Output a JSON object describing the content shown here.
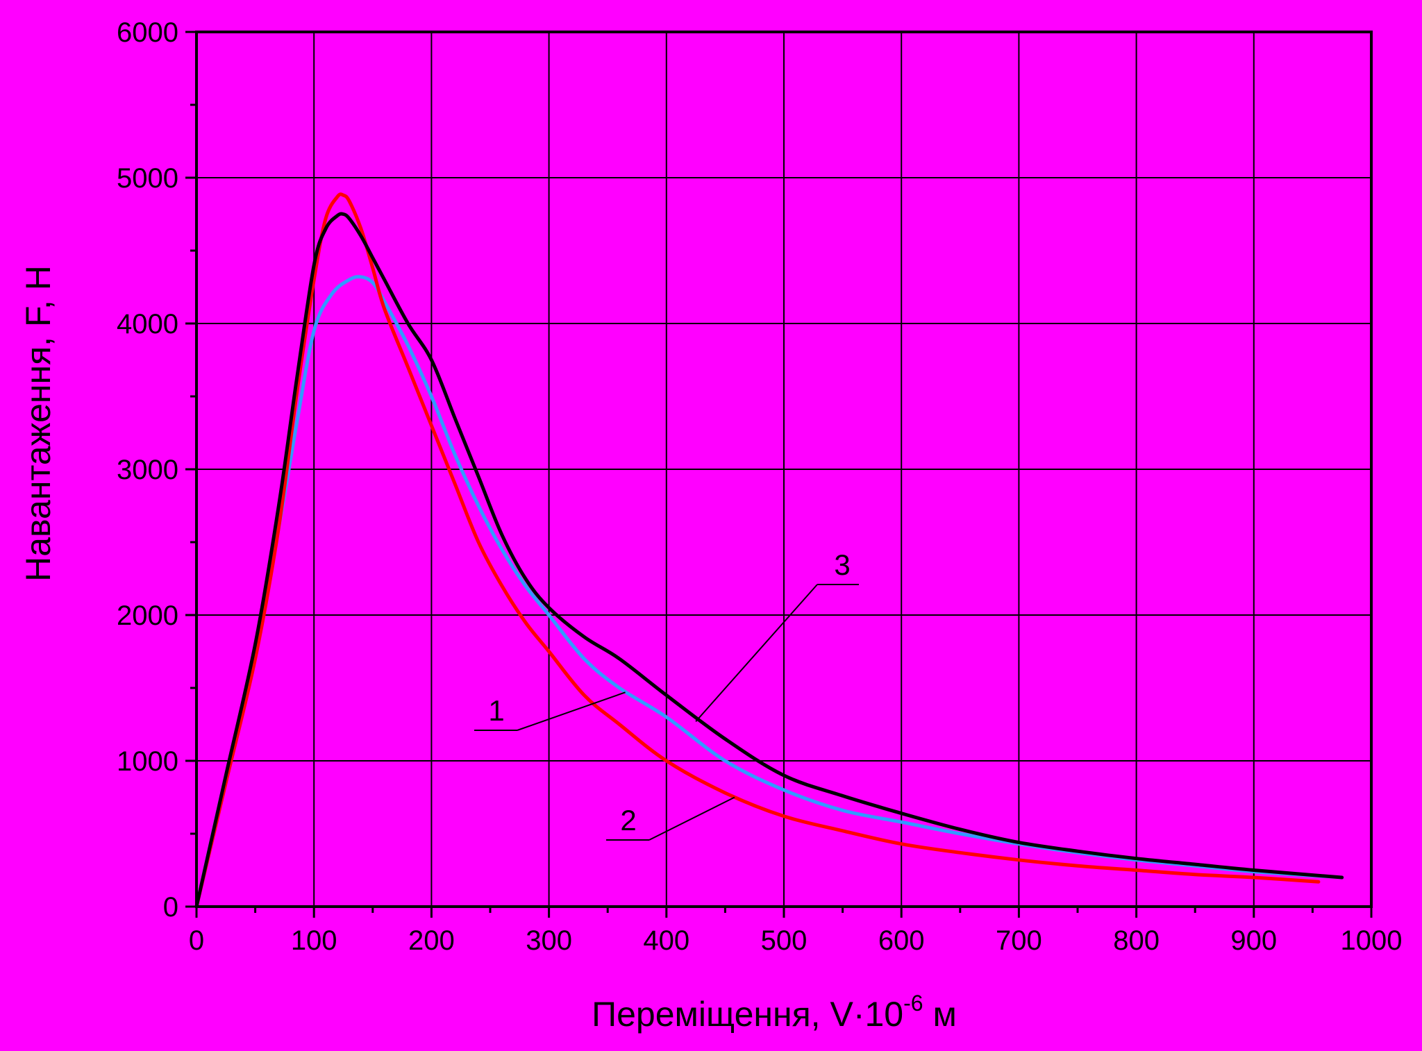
{
  "chart_data": {
    "type": "line",
    "xlabel": "Переміщення, V·10",
    "xlabel_exp": "-6",
    "xlabel_unit": " м",
    "ylabel": "Навантаження, F, Н",
    "xlim": [
      0,
      1000
    ],
    "ylim": [
      0,
      6000
    ],
    "xticks": [
      0,
      100,
      200,
      300,
      400,
      500,
      600,
      700,
      800,
      900,
      1000
    ],
    "yticks": [
      0,
      1000,
      2000,
      3000,
      4000,
      5000,
      6000
    ],
    "grid": true,
    "background": "#FF00FF",
    "series": [
      {
        "name": "1",
        "color": "#3399FF",
        "x": [
          0,
          25,
          50,
          70,
          85,
          100,
          115,
          130,
          140,
          150,
          160,
          180,
          200,
          220,
          240,
          260,
          280,
          300,
          330,
          360,
          400,
          450,
          500,
          550,
          600,
          650,
          700,
          750,
          800,
          850,
          900,
          975
        ],
        "y": [
          0,
          900,
          1750,
          2600,
          3300,
          3950,
          4200,
          4300,
          4320,
          4280,
          4150,
          3850,
          3500,
          3100,
          2750,
          2450,
          2200,
          2000,
          1700,
          1500,
          1300,
          1000,
          800,
          660,
          580,
          500,
          430,
          370,
          320,
          280,
          240,
          200
        ]
      },
      {
        "name": "2",
        "color": "#FF0000",
        "x": [
          0,
          25,
          50,
          70,
          85,
          100,
          110,
          120,
          125,
          130,
          140,
          150,
          160,
          180,
          200,
          220,
          240,
          260,
          280,
          300,
          330,
          360,
          400,
          450,
          500,
          550,
          600,
          650,
          700,
          750,
          800,
          850,
          900,
          955
        ],
        "y": [
          0,
          850,
          1700,
          2600,
          3500,
          4300,
          4720,
          4870,
          4880,
          4840,
          4650,
          4380,
          4100,
          3700,
          3300,
          2900,
          2500,
          2200,
          1950,
          1750,
          1450,
          1250,
          1000,
          780,
          620,
          520,
          430,
          370,
          320,
          280,
          250,
          220,
          200,
          170
        ]
      },
      {
        "name": "3",
        "color": "#000000",
        "x": [
          0,
          25,
          50,
          70,
          85,
          100,
          110,
          120,
          125,
          130,
          140,
          150,
          160,
          180,
          200,
          220,
          240,
          260,
          280,
          300,
          330,
          360,
          400,
          450,
          500,
          550,
          600,
          650,
          700,
          750,
          800,
          850,
          900,
          975
        ],
        "y": [
          0,
          900,
          1800,
          2750,
          3600,
          4400,
          4650,
          4740,
          4750,
          4720,
          4600,
          4450,
          4300,
          4000,
          3750,
          3350,
          2950,
          2550,
          2250,
          2050,
          1850,
          1700,
          1450,
          1150,
          900,
          760,
          640,
          530,
          440,
          380,
          330,
          290,
          250,
          200
        ]
      }
    ],
    "annotations": [
      {
        "text": "1",
        "series": "1",
        "x": 365,
        "y": 1470
      },
      {
        "text": "2",
        "series": "2",
        "x": 458,
        "y": 750
      },
      {
        "text": "3",
        "series": "3",
        "x": 425,
        "y": 1270
      }
    ]
  }
}
